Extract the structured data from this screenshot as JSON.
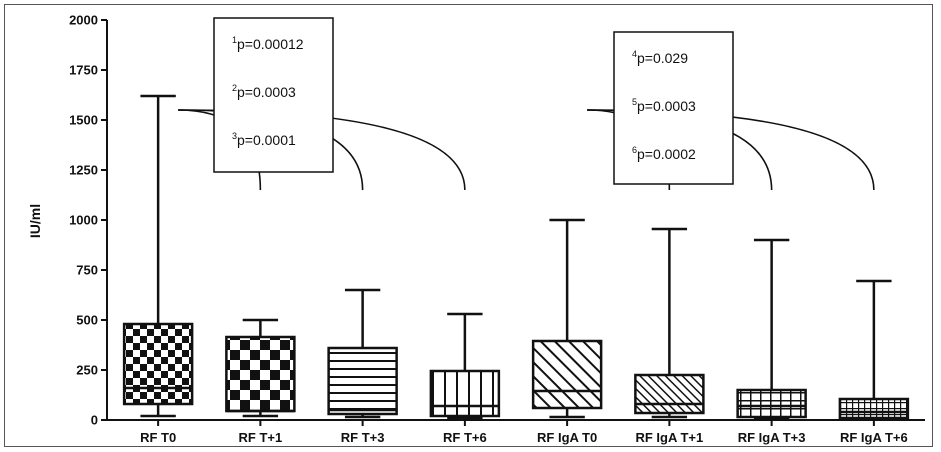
{
  "chart_data": {
    "type": "box",
    "ylabel": "IU/ml",
    "ylim": [
      0,
      2000
    ],
    "yticks": [
      "0",
      "250",
      "500",
      "750",
      "1000",
      "1250",
      "1500",
      "1750",
      "2000"
    ],
    "categories": [
      "RF T0",
      "RF T+1",
      "RF T+3",
      "RF T+6",
      "RF IgA T0",
      "RF IgA T+1",
      "RF IgA T+3",
      "RF IgA T+6"
    ],
    "boxes": [
      {
        "label": "RF T0",
        "min": 20,
        "q1": 80,
        "median": 160,
        "q3": 480,
        "max": 1620,
        "pattern": "checker-small"
      },
      {
        "label": "RF T+1",
        "min": 20,
        "q1": 45,
        "median": 45,
        "q3": 415,
        "max": 500,
        "pattern": "checker-large"
      },
      {
        "label": "RF T+3",
        "min": 15,
        "q1": 30,
        "median": 50,
        "q3": 360,
        "max": 650,
        "pattern": "horizontal"
      },
      {
        "label": "RF T+6",
        "min": 10,
        "q1": 20,
        "median": 70,
        "q3": 245,
        "max": 530,
        "pattern": "vertical"
      },
      {
        "label": "RF IgA T0",
        "min": 15,
        "q1": 60,
        "median": 145,
        "q3": 395,
        "max": 1000,
        "pattern": "diag-wide"
      },
      {
        "label": "RF IgA T+1",
        "min": 15,
        "q1": 35,
        "median": 80,
        "q3": 225,
        "max": 955,
        "pattern": "diag-narrow"
      },
      {
        "label": "RF IgA T+3",
        "min": 10,
        "q1": 15,
        "median": 70,
        "q3": 150,
        "max": 900,
        "pattern": "grid"
      },
      {
        "label": "RF IgA T+6",
        "min": 5,
        "q1": 10,
        "median": 40,
        "q3": 105,
        "max": 695,
        "pattern": "grid-fine"
      }
    ],
    "annotations": [
      {
        "group": "RF",
        "from": "RF T0",
        "targets": [
          "RF T+1",
          "RF T+3",
          "RF T+6"
        ],
        "pvalues": [
          {
            "sup": "1",
            "text": "p=0.00012"
          },
          {
            "sup": "2",
            "text": "p=0.0003"
          },
          {
            "sup": "3",
            "text": "p=0.0001"
          }
        ]
      },
      {
        "group": "RF IgA",
        "from": "RF IgA T0",
        "targets": [
          "RF IgA T+1",
          "RF IgA T+3",
          "RF IgA T+6"
        ],
        "pvalues": [
          {
            "sup": "4",
            "text": "p=0.029"
          },
          {
            "sup": "5",
            "text": "p=0.0003"
          },
          {
            "sup": "6",
            "text": "p=0.0002"
          }
        ]
      }
    ],
    "legend": "none",
    "grid": false
  }
}
